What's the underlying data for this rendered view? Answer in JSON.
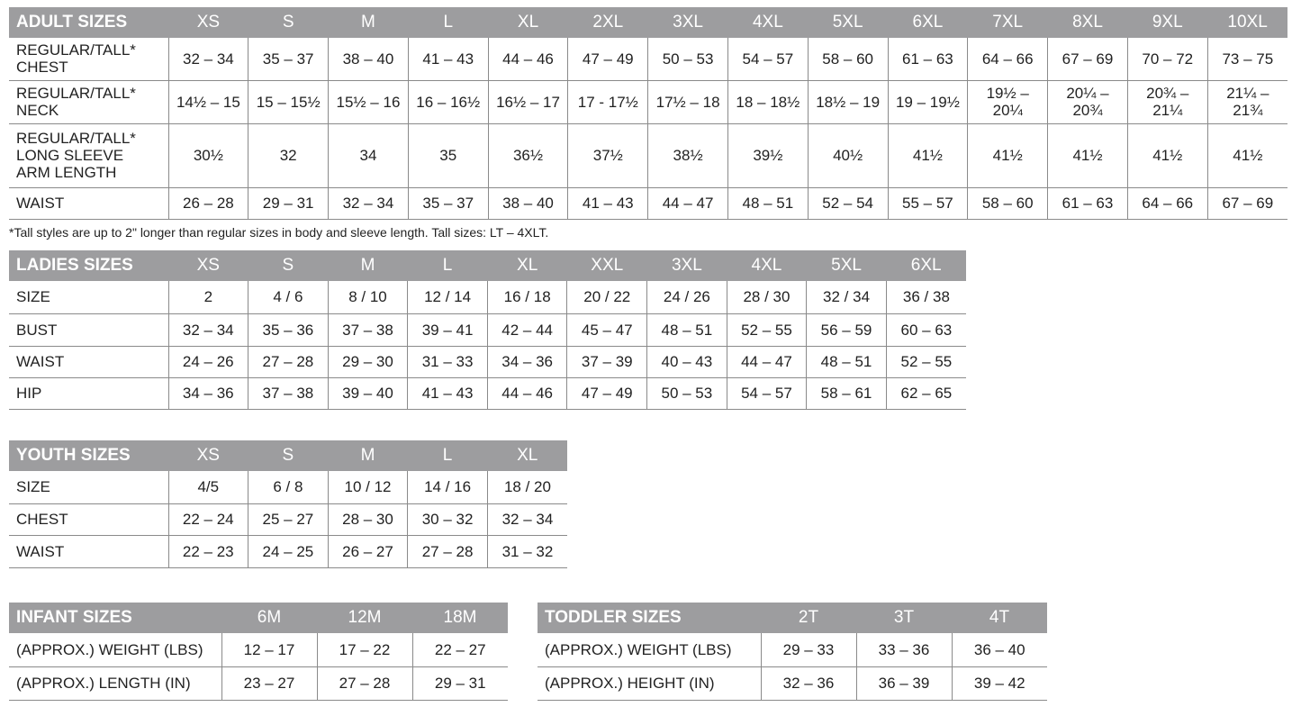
{
  "adult": {
    "title": "ADULT SIZES",
    "sizes": [
      "XS",
      "S",
      "M",
      "L",
      "XL",
      "2XL",
      "3XL",
      "4XL",
      "5XL",
      "6XL",
      "7XL",
      "8XL",
      "9XL",
      "10XL"
    ],
    "rows": [
      {
        "label": "REGULAR/TALL*\nCHEST",
        "values": [
          "32 – 34",
          "35 – 37",
          "38 – 40",
          "41 – 43",
          "44 – 46",
          "47 – 49",
          "50 – 53",
          "54 – 57",
          "58 – 60",
          "61 – 63",
          "64 – 66",
          "67 – 69",
          "70 – 72",
          "73 – 75"
        ]
      },
      {
        "label": "REGULAR/TALL*\nNECK",
        "values": [
          "14½ – 15",
          "15 – 15½",
          "15½ – 16",
          "16 – 16½",
          "16½ – 17",
          "17 - 17½",
          "17½ – 18",
          "18 – 18½",
          "18½ – 19",
          "19 – 19½",
          "19½ –\n20¼",
          "20¼ –\n20¾",
          "20¾ –\n21¼",
          "21¼ –\n21¾"
        ]
      },
      {
        "label": "REGULAR/TALL*\nLONG SLEEVE\nARM LENGTH",
        "values": [
          "30½",
          "32",
          "34",
          "35",
          "36½",
          "37½",
          "38½",
          "39½",
          "40½",
          "41½",
          "41½",
          "41½",
          "41½",
          "41½"
        ]
      },
      {
        "label": "WAIST",
        "values": [
          "26 – 28",
          "29 – 31",
          "32 – 34",
          "35 – 37",
          "38 – 40",
          "41 – 43",
          "44 – 47",
          "48 – 51",
          "52 – 54",
          "55 – 57",
          "58 – 60",
          "61 – 63",
          "64 – 66",
          "67 – 69"
        ]
      }
    ],
    "footnote": "*Tall styles are up to 2\" longer than regular sizes in body and sleeve length. Tall sizes: LT – 4XLT."
  },
  "ladies": {
    "title": "LADIES SIZES",
    "sizes": [
      "XS",
      "S",
      "M",
      "L",
      "XL",
      "XXL",
      "3XL",
      "4XL",
      "5XL",
      "6XL"
    ],
    "rows": [
      {
        "label": "SIZE",
        "values": [
          "2",
          "4 / 6",
          "8 / 10",
          "12 / 14",
          "16 / 18",
          "20 / 22",
          "24 / 26",
          "28 / 30",
          "32 / 34",
          "36 / 38"
        ]
      },
      {
        "label": "BUST",
        "values": [
          "32 – 34",
          "35 – 36",
          "37 – 38",
          "39 – 41",
          "42 – 44",
          "45 – 47",
          "48 – 51",
          "52 – 55",
          "56 – 59",
          "60 – 63"
        ]
      },
      {
        "label": "WAIST",
        "values": [
          "24 – 26",
          "27 – 28",
          "29 – 30",
          "31 – 33",
          "34 – 36",
          "37 – 39",
          "40 – 43",
          "44 – 47",
          "48 – 51",
          "52 – 55"
        ]
      },
      {
        "label": "HIP",
        "values": [
          "34 – 36",
          "37 – 38",
          "39 – 40",
          "41 – 43",
          "44 – 46",
          "47 – 49",
          "50 – 53",
          "54 – 57",
          "58 – 61",
          "62 – 65"
        ]
      }
    ]
  },
  "youth": {
    "title": "YOUTH SIZES",
    "sizes": [
      "XS",
      "S",
      "M",
      "L",
      "XL"
    ],
    "rows": [
      {
        "label": "SIZE",
        "values": [
          "4/5",
          "6 / 8",
          "10 / 12",
          "14 / 16",
          "18 / 20"
        ]
      },
      {
        "label": "CHEST",
        "values": [
          "22 – 24",
          "25 – 27",
          "28 – 30",
          "30 – 32",
          "32 – 34"
        ]
      },
      {
        "label": "WAIST",
        "values": [
          "22 – 23",
          "24 – 25",
          "26 – 27",
          "27 – 28",
          "31 – 32"
        ]
      }
    ]
  },
  "infant": {
    "title": "INFANT SIZES",
    "sizes": [
      "6M",
      "12M",
      "18M"
    ],
    "rows": [
      {
        "label": "(APPROX.) WEIGHT (LBS)",
        "values": [
          "12 – 17",
          "17 – 22",
          "22 – 27"
        ]
      },
      {
        "label": "(APPROX.) LENGTH (IN)",
        "values": [
          "23 – 27",
          "27 – 28",
          "29 – 31"
        ]
      }
    ]
  },
  "toddler": {
    "title": "TODDLER SIZES",
    "sizes": [
      "2T",
      "3T",
      "4T"
    ],
    "rows": [
      {
        "label": "(APPROX.) WEIGHT (LBS)",
        "values": [
          "29 – 33",
          "33 – 36",
          "36 – 40"
        ]
      },
      {
        "label": "(APPROX.) HEIGHT (IN)",
        "values": [
          "32 – 36",
          "36 – 39",
          "39 – 42"
        ]
      }
    ]
  },
  "colors": {
    "header_bg": "#9d9d9f",
    "header_text": "#ffffff",
    "rule": "#8a8a8a"
  }
}
